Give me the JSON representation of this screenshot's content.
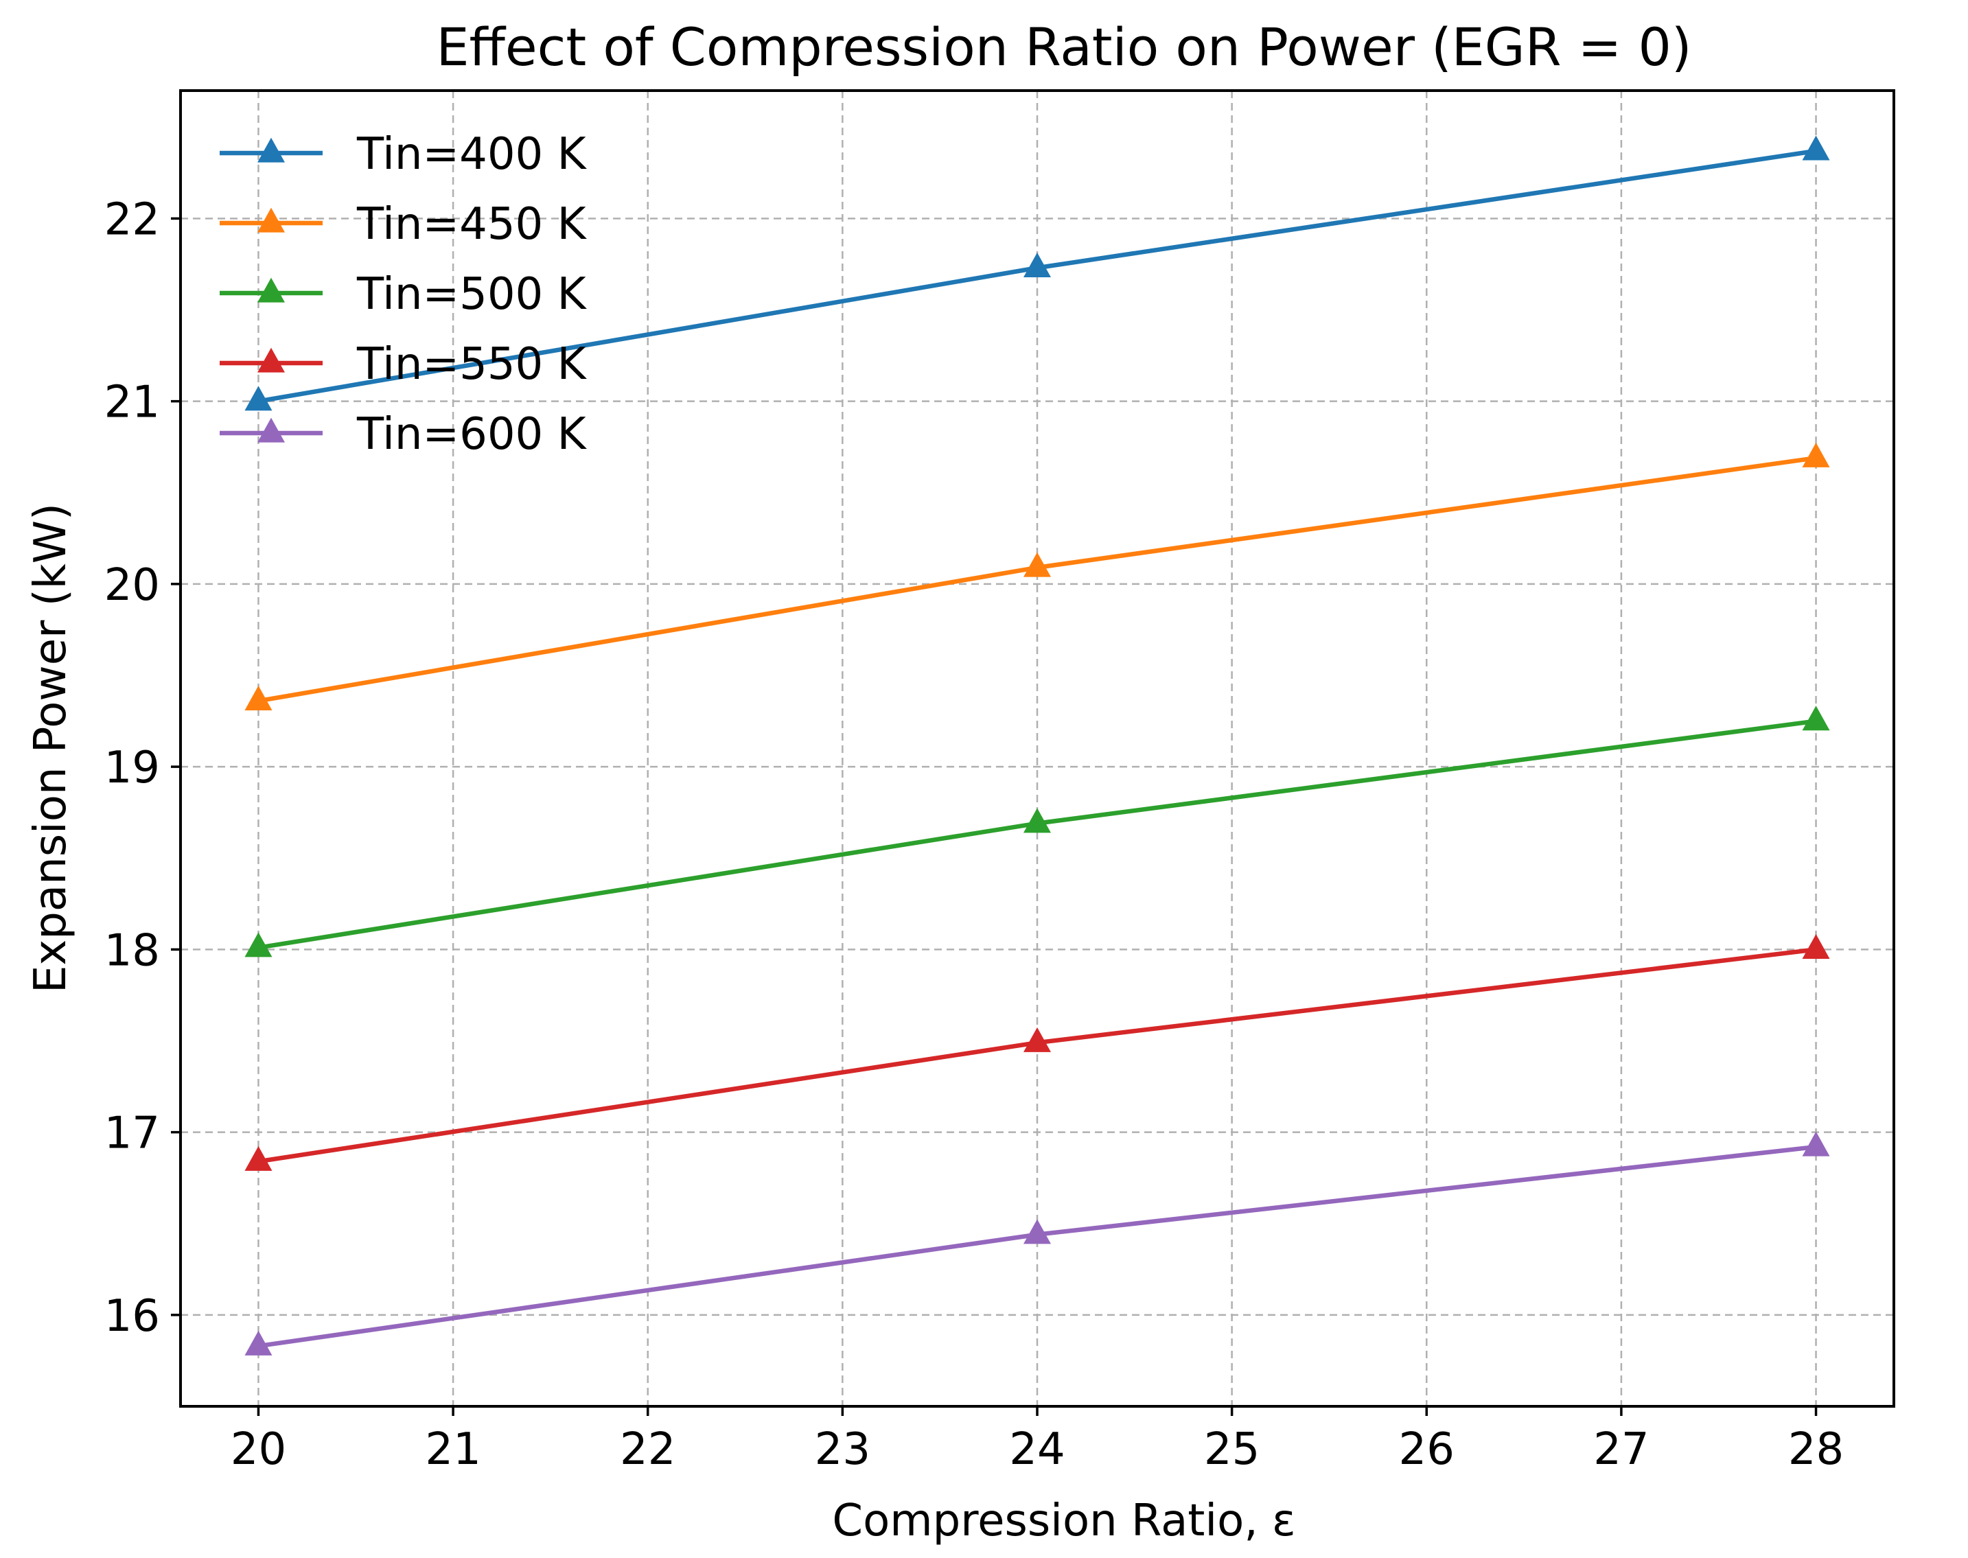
{
  "chart_data": {
    "type": "line",
    "title": "Effect of Compression Ratio on Power (EGR = 0)",
    "xlabel": "Compression Ratio, ε",
    "ylabel": "Expansion Power (kW)",
    "xlim": [
      19.6,
      28.4
    ],
    "ylim": [
      15.5,
      22.7
    ],
    "xticks": [
      20,
      21,
      22,
      23,
      24,
      25,
      26,
      27,
      28
    ],
    "yticks": [
      16,
      17,
      18,
      19,
      20,
      21,
      22
    ],
    "grid": true,
    "legend_position": "top-left",
    "marker": "triangle",
    "x": [
      20,
      24,
      28
    ],
    "series": [
      {
        "name": "Tin=400 K",
        "color": "#1f77b4",
        "values": [
          21.0,
          21.73,
          22.37
        ]
      },
      {
        "name": "Tin=450 K",
        "color": "#ff7f0e",
        "values": [
          19.36,
          20.09,
          20.69
        ]
      },
      {
        "name": "Tin=500 K",
        "color": "#2ca02c",
        "values": [
          18.01,
          18.69,
          19.25
        ]
      },
      {
        "name": "Tin=550 K",
        "color": "#d62728",
        "values": [
          16.84,
          17.49,
          18.0
        ]
      },
      {
        "name": "Tin=600 K",
        "color": "#9467bd",
        "values": [
          15.83,
          16.44,
          16.92
        ]
      }
    ]
  }
}
